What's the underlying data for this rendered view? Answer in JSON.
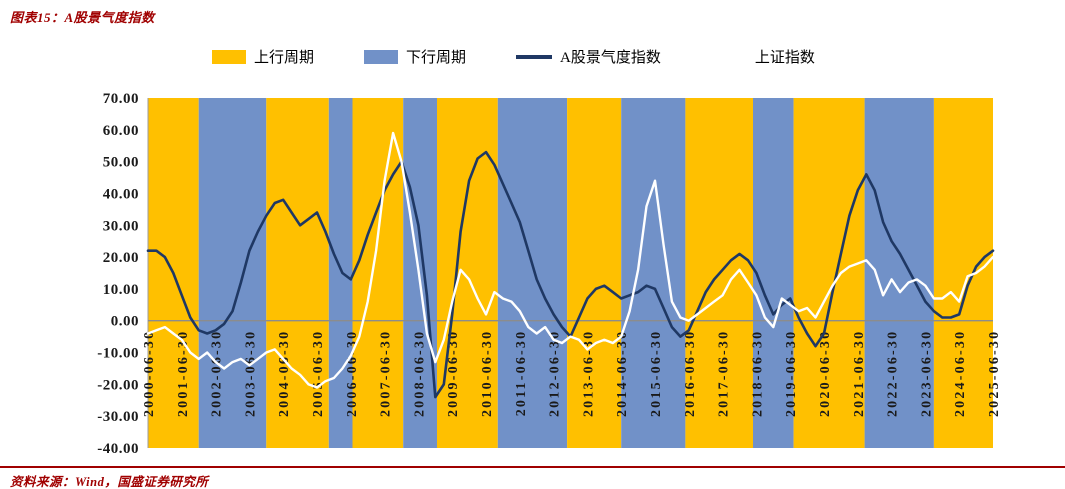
{
  "header": {
    "title": "图表15：A股景气度指数"
  },
  "footer": {
    "source": "资料来源：Wind，国盛证券研究所"
  },
  "colors": {
    "up_band": "#FFC000",
    "down_band": "#7191C8",
    "prosperity_line": "#1F3864",
    "sse_line": "#FFFFFF",
    "accent_red": "#A00000",
    "zero_line": "#8C8C8C",
    "axis_line": "#9C9C9C",
    "tick_text": "#1A1A1A"
  },
  "legend": {
    "items": [
      {
        "label": "上行周期",
        "swatch": "box",
        "color": "#FFC000"
      },
      {
        "label": "下行周期",
        "swatch": "box",
        "color": "#7191C8"
      },
      {
        "label": "A股景气度指数",
        "swatch": "line",
        "color": "#1F3864"
      },
      {
        "label": "上证指数",
        "swatch": "line",
        "color": "#FFFFFF"
      }
    ]
  },
  "chart_data": {
    "type": "line",
    "title": "A股景气度指数",
    "xlabel": "",
    "ylabel": "",
    "x_range": [
      2000.5,
      2025.5
    ],
    "ylim": [
      -40,
      70
    ],
    "grid": "none",
    "legend_position": "top",
    "y_ticks": [
      "70.00",
      "60.00",
      "50.00",
      "40.00",
      "30.00",
      "20.00",
      "10.00",
      "0.00",
      "-10.00",
      "-20.00",
      "-30.00",
      "-40.00"
    ],
    "x_ticks": [
      "2000-06-30",
      "2001-06-30",
      "2002-06-30",
      "2003-06-30",
      "2004-06-30",
      "2005-06-30",
      "2006-06-30",
      "2007-06-30",
      "2008-06-30",
      "2009-06-30",
      "2010-06-30",
      "2011-06-30",
      "2012-06-30",
      "2013-06-30",
      "2014-06-30",
      "2015-06-30",
      "2016-06-30",
      "2017-06-30",
      "2018-06-30",
      "2019-06-30",
      "2020-06-30",
      "2021-06-30",
      "2022-06-30",
      "2023-06-30",
      "2024-06-30",
      "2025-06-30"
    ],
    "bands": [
      {
        "start": 2000.5,
        "end": 2002.0,
        "phase": "up"
      },
      {
        "start": 2002.0,
        "end": 2004.0,
        "phase": "down"
      },
      {
        "start": 2004.0,
        "end": 2005.85,
        "phase": "up"
      },
      {
        "start": 2005.85,
        "end": 2006.55,
        "phase": "down"
      },
      {
        "start": 2006.55,
        "end": 2008.05,
        "phase": "up"
      },
      {
        "start": 2008.05,
        "end": 2009.05,
        "phase": "down"
      },
      {
        "start": 2009.05,
        "end": 2010.85,
        "phase": "up"
      },
      {
        "start": 2010.85,
        "end": 2012.9,
        "phase": "down"
      },
      {
        "start": 2012.9,
        "end": 2014.5,
        "phase": "up"
      },
      {
        "start": 2014.5,
        "end": 2016.4,
        "phase": "down"
      },
      {
        "start": 2016.4,
        "end": 2018.4,
        "phase": "up"
      },
      {
        "start": 2018.4,
        "end": 2019.6,
        "phase": "down"
      },
      {
        "start": 2019.6,
        "end": 2021.7,
        "phase": "up"
      },
      {
        "start": 2021.7,
        "end": 2023.75,
        "phase": "down"
      },
      {
        "start": 2023.75,
        "end": 2025.5,
        "phase": "up"
      }
    ],
    "x": [
      2000.5,
      2000.75,
      2001,
      2001.25,
      2001.5,
      2001.75,
      2002,
      2002.25,
      2002.5,
      2002.75,
      2003,
      2003.25,
      2003.5,
      2003.75,
      2004,
      2004.25,
      2004.5,
      2004.75,
      2005,
      2005.25,
      2005.5,
      2005.75,
      2006,
      2006.25,
      2006.5,
      2006.75,
      2007,
      2007.25,
      2007.5,
      2007.75,
      2008,
      2008.25,
      2008.5,
      2008.75,
      2009,
      2009.25,
      2009.5,
      2009.75,
      2010,
      2010.25,
      2010.5,
      2010.75,
      2011,
      2011.25,
      2011.5,
      2011.75,
      2012,
      2012.25,
      2012.5,
      2012.75,
      2013,
      2013.25,
      2013.5,
      2013.75,
      2014,
      2014.25,
      2014.5,
      2014.75,
      2015,
      2015.25,
      2015.5,
      2015.75,
      2016,
      2016.25,
      2016.5,
      2016.75,
      2017,
      2017.25,
      2017.5,
      2017.75,
      2018,
      2018.25,
      2018.5,
      2018.75,
      2019,
      2019.25,
      2019.5,
      2019.75,
      2020,
      2020.25,
      2020.5,
      2020.75,
      2021,
      2021.25,
      2021.5,
      2021.75,
      2022,
      2022.25,
      2022.5,
      2022.75,
      2023,
      2023.25,
      2023.5,
      2023.75,
      2024,
      2024.25,
      2024.5,
      2024.75,
      2025,
      2025.25,
      2025.5
    ],
    "series": [
      {
        "key": "prosperity-index",
        "name": "A股景气度指数",
        "color": "#1F3864",
        "width": 2.6,
        "values": [
          22,
          22,
          20,
          15,
          8,
          1,
          -3,
          -4,
          -3,
          -1,
          3,
          12,
          22,
          28,
          33,
          37,
          38,
          34,
          30,
          32,
          34,
          28,
          21,
          15,
          13,
          19,
          27,
          34,
          41,
          46,
          50,
          42,
          30,
          8,
          -24,
          -20,
          2,
          28,
          44,
          51,
          53,
          49,
          43,
          37,
          31,
          22,
          13,
          7,
          2,
          -2,
          -5,
          1,
          7,
          10,
          11,
          9,
          7,
          8,
          9,
          11,
          10,
          4,
          -2,
          -5,
          -3,
          3,
          9,
          13,
          16,
          19,
          21,
          19,
          15,
          8,
          2,
          5,
          7,
          1,
          -4,
          -8,
          -4,
          9,
          21,
          33,
          41,
          46,
          41,
          31,
          25,
          21,
          16,
          11,
          6,
          3,
          1,
          1,
          2,
          11,
          17,
          20,
          22
        ]
      },
      {
        "key": "sse-index",
        "name": "上证指数",
        "color": "#FFFFFF",
        "width": 2.4,
        "values": [
          -4,
          -3,
          -2,
          -4,
          -6,
          -10,
          -12,
          -10,
          -13,
          -15,
          -13,
          -12,
          -14,
          -12,
          -10,
          -9,
          -12,
          -15,
          -17,
          -20,
          -21,
          -19,
          -18,
          -15,
          -11,
          -5,
          6,
          22,
          44,
          59,
          50,
          34,
          16,
          -4,
          -13,
          -6,
          6,
          16,
          13,
          7,
          2,
          9,
          7,
          6,
          3,
          -2,
          -4,
          -2,
          -6,
          -7,
          -5,
          -6,
          -9,
          -7,
          -6,
          -7,
          -5,
          3,
          16,
          36,
          44,
          24,
          6,
          1,
          0,
          2,
          4,
          6,
          8,
          13,
          16,
          12,
          8,
          1,
          -2,
          7,
          5,
          3,
          4,
          1,
          6,
          11,
          15,
          17,
          18,
          19,
          16,
          8,
          13,
          9,
          12,
          13,
          11,
          7,
          7,
          9,
          6,
          14,
          15,
          17,
          20
        ]
      }
    ]
  }
}
